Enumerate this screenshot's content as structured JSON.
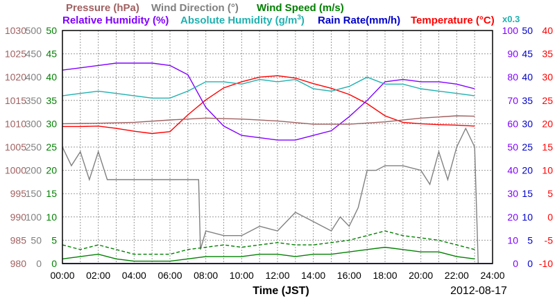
{
  "chart_data": {
    "type": "line",
    "xlabel": "Time (JST)",
    "date_label": "2012-08-17",
    "x_ticks": [
      "00:00",
      "02:00",
      "04:00",
      "06:00",
      "08:00",
      "10:00",
      "12:00",
      "14:00",
      "16:00",
      "18:00",
      "20:00",
      "22:00",
      "24:00"
    ],
    "grid": true,
    "header": {
      "pressure": "Pressure (hPa)",
      "wind_dir": "Wind Direction (°)",
      "wind_speed": "Wind Speed (m/s)",
      "rh": "Relative Humidity (%)",
      "ah": "Absolute Humidity (g/m",
      "ah_sup": "3",
      "ah_close": ")",
      "rain": "Rain Rate(mm/h)",
      "temp": "Temperature (°C)",
      "x03": "x0.3"
    },
    "axes": {
      "pressure": {
        "ticks": [
          "1030",
          "1025",
          "1020",
          "1015",
          "1010",
          "1005",
          "1000",
          "995",
          "990",
          "985",
          "980"
        ],
        "color": "#a06060",
        "ylim": [
          980,
          1030
        ]
      },
      "wind_dir": {
        "ticks": [
          "500",
          "450",
          "400",
          "350",
          "300",
          "250",
          "200",
          "150",
          "100",
          "50",
          "0"
        ],
        "color": "#808080",
        "ylim": [
          0,
          500
        ]
      },
      "wind_speed": {
        "ticks": [
          "50",
          "45",
          "40",
          "35",
          "30",
          "25",
          "20",
          "15",
          "10",
          "5",
          "0"
        ],
        "color": "#008000",
        "ylim": [
          0,
          50
        ]
      },
      "rh": {
        "ticks": [
          "100",
          "90",
          "80",
          "70",
          "60",
          "50",
          "40",
          "30",
          "20",
          "10",
          "0"
        ],
        "color": "#8000ff",
        "ylim": [
          0,
          100
        ]
      },
      "rain": {
        "ticks": [
          "50",
          "45",
          "40",
          "35",
          "30",
          "25",
          "20",
          "15",
          "10",
          "5",
          "0"
        ],
        "color": "#0000cc",
        "ylim": [
          0,
          50
        ]
      },
      "temp": {
        "ticks": [
          "40",
          "35",
          "30",
          "25",
          "20",
          "15",
          "10",
          "5",
          "0",
          "-5",
          "-10"
        ],
        "color": "#ff0000",
        "ylim": [
          -10,
          40
        ]
      }
    },
    "series": [
      {
        "name": "Temperature",
        "unit": "°C",
        "color": "#ff0000",
        "style": "solid",
        "x": [
          0,
          1,
          2,
          3,
          4,
          5,
          6,
          7,
          8,
          9,
          10,
          11,
          12,
          13,
          14,
          15,
          16,
          17,
          18,
          19,
          20,
          21,
          22,
          23
        ],
        "y": [
          19.4,
          19.4,
          19.5,
          19.0,
          18.4,
          17.9,
          18.3,
          21.9,
          25.1,
          27.7,
          29.0,
          30.0,
          30.3,
          29.8,
          28.6,
          27.6,
          26.3,
          24.3,
          21.7,
          20.3,
          20.0,
          19.8,
          19.7,
          19.5
        ]
      },
      {
        "name": "Relative Humidity",
        "unit": "%",
        "color": "#8000ff",
        "style": "solid",
        "x": [
          0,
          1,
          2,
          3,
          4,
          5,
          6,
          7,
          8,
          9,
          10,
          11,
          12,
          13,
          14,
          15,
          16,
          17,
          18,
          19,
          20,
          21,
          22,
          23
        ],
        "y": [
          83,
          84,
          85,
          86,
          86,
          86,
          85,
          81,
          67,
          59,
          55,
          54,
          53,
          53,
          55,
          57,
          63,
          70,
          78,
          79,
          78,
          78,
          77,
          75
        ]
      },
      {
        "name": "Absolute Humidity",
        "unit": "g/m3 x0.3",
        "color": "#20b0b0",
        "style": "solid",
        "x": [
          0,
          1,
          2,
          3,
          4,
          5,
          6,
          7,
          8,
          9,
          10,
          11,
          12,
          13,
          14,
          15,
          16,
          17,
          18,
          19,
          20,
          21,
          22,
          23
        ],
        "y": [
          72,
          73,
          74,
          73,
          72,
          71,
          71,
          74,
          78,
          78,
          77,
          79,
          78,
          79,
          75,
          74,
          76,
          80,
          77,
          77,
          75,
          74,
          73,
          72
        ]
      },
      {
        "name": "Pressure",
        "unit": "hPa",
        "color": "#a06060",
        "style": "solid",
        "x": [
          0,
          2,
          4,
          6,
          8,
          10,
          12,
          14,
          16,
          18,
          20,
          22,
          23
        ],
        "y": [
          1010.0,
          1010.1,
          1010.3,
          1010.8,
          1011.2,
          1011.0,
          1010.6,
          1009.9,
          1009.9,
          1010.4,
          1011.2,
          1011.7,
          1011.6
        ]
      },
      {
        "name": "Wind Direction",
        "unit": "°",
        "color": "#808080",
        "style": "solid",
        "x": [
          0,
          0.5,
          1,
          1.5,
          2,
          2.5,
          3,
          4,
          5,
          6,
          7,
          7.6,
          7.7,
          8,
          9,
          10,
          11,
          12,
          13,
          14,
          15,
          15.5,
          16,
          16.5,
          17,
          17.5,
          18,
          19,
          20,
          20.5,
          21,
          21.5,
          22,
          22.5,
          23,
          23.2
        ],
        "y": [
          250,
          210,
          240,
          180,
          240,
          180,
          180,
          180,
          180,
          180,
          180,
          180,
          30,
          70,
          60,
          60,
          80,
          70,
          110,
          90,
          70,
          100,
          80,
          120,
          200,
          200,
          210,
          210,
          200,
          170,
          240,
          180,
          250,
          290,
          250,
          0
        ]
      },
      {
        "name": "Wind Speed",
        "unit": "m/s",
        "color": "#008000",
        "style": "solid",
        "x": [
          0,
          1,
          2,
          3,
          4,
          5,
          6,
          7,
          8,
          9,
          10,
          11,
          12,
          13,
          14,
          15,
          16,
          17,
          18,
          19,
          20,
          21,
          22,
          23
        ],
        "y": [
          1,
          1.5,
          2,
          1,
          0.5,
          0.5,
          0.5,
          1,
          1.5,
          1.5,
          1.5,
          2,
          2,
          1.5,
          2,
          2,
          2.5,
          3,
          3.5,
          3,
          2.5,
          2.5,
          1.5,
          1
        ]
      },
      {
        "name": "Wind Speed Max",
        "unit": "m/s",
        "color": "#008000",
        "style": "dashed",
        "x": [
          0,
          1,
          2,
          3,
          4,
          5,
          6,
          7,
          8,
          9,
          10,
          11,
          12,
          13,
          14,
          15,
          16,
          17,
          18,
          19,
          20,
          21,
          22,
          23
        ],
        "y": [
          4,
          3,
          4,
          3,
          2,
          2,
          2,
          3,
          3.5,
          4,
          3.5,
          4,
          4.5,
          4,
          4,
          4.5,
          5,
          6,
          7,
          6,
          5.5,
          5,
          4,
          3
        ]
      },
      {
        "name": "Rain Rate",
        "unit": "mm/h",
        "color": "#0000cc",
        "style": "solid",
        "x": [
          0,
          24
        ],
        "y": [
          0,
          0
        ]
      }
    ]
  }
}
